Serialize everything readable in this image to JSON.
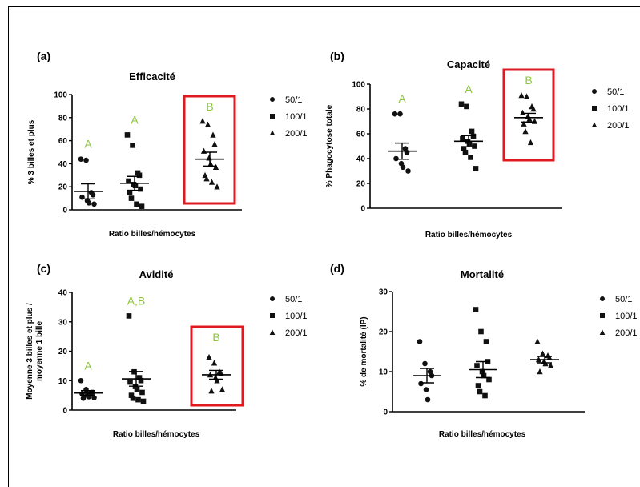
{
  "colors": {
    "group_letter": "#8dc63f",
    "highlight_box": "#e0191f",
    "marks": "#111111"
  },
  "chart_data": [
    {
      "id": "a",
      "panel_label": "(a)",
      "type": "scatter",
      "title": "Efficacité",
      "xlabel": "Ratio billes/hémocytes",
      "ylabel": "% 3 billes et plus",
      "ylim": [
        0,
        100
      ],
      "yticks": [
        0,
        20,
        40,
        60,
        80,
        100
      ],
      "categories": [
        "50/1",
        "100/1",
        "200/1"
      ],
      "legend": {
        "placement": "right",
        "entries": [
          {
            "label": "50/1",
            "marker": "circle"
          },
          {
            "label": "100/1",
            "marker": "square"
          },
          {
            "label": "200/1",
            "marker": "triangle"
          }
        ]
      },
      "series": [
        {
          "marker": "circle",
          "values": [
            44,
            43,
            15,
            13,
            11,
            8,
            6,
            5
          ],
          "mean": 16,
          "sem": 6.5,
          "letter": "A"
        },
        {
          "marker": "square",
          "values": [
            65,
            56,
            32,
            30,
            25,
            22,
            21,
            18,
            15,
            10,
            5,
            3
          ],
          "mean": 23,
          "sem": 6,
          "letter": "A"
        },
        {
          "marker": "triangle",
          "values": [
            77,
            74,
            65,
            57,
            51,
            45,
            40,
            37,
            30,
            27,
            24,
            20
          ],
          "mean": 44,
          "sem": 6,
          "letter": "B"
        }
      ],
      "highlight_category": 2
    },
    {
      "id": "b",
      "panel_label": "(b)",
      "type": "scatter",
      "title": "Capacité",
      "xlabel": "Ratio billes/hémocytes",
      "ylabel": "% Phagocytose totale",
      "ylim": [
        0,
        100
      ],
      "yticks": [
        0,
        20,
        40,
        60,
        80,
        100
      ],
      "categories": [
        "50/1",
        "100/1",
        "200/1"
      ],
      "legend": {
        "placement": "right",
        "entries": [
          {
            "label": "50/1",
            "marker": "circle"
          },
          {
            "label": "100/1",
            "marker": "square"
          },
          {
            "label": "200/1",
            "marker": "triangle"
          }
        ]
      },
      "series": [
        {
          "marker": "circle",
          "values": [
            76,
            76,
            48,
            45,
            40,
            36,
            33,
            30
          ],
          "mean": 46,
          "sem": 6.5,
          "letter": "A"
        },
        {
          "marker": "square",
          "values": [
            84,
            82,
            62,
            58,
            56,
            54,
            52,
            50,
            48,
            45,
            41,
            32
          ],
          "mean": 54,
          "sem": 4.5,
          "letter": "A"
        },
        {
          "marker": "triangle",
          "values": [
            91,
            90,
            82,
            80,
            77,
            74,
            72,
            70,
            68,
            62,
            53
          ],
          "mean": 73,
          "sem": 3.5,
          "letter": "B"
        }
      ],
      "highlight_category": 2
    },
    {
      "id": "c",
      "panel_label": "(c)",
      "type": "scatter",
      "title": "Avidité",
      "xlabel": "Ratio billes/hémocytes",
      "ylabel": "Moyenne 3 billes et plus / moyenne 1 bille",
      "ylim": [
        0,
        40
      ],
      "yticks": [
        0,
        10,
        20,
        30,
        40
      ],
      "categories": [
        "50/1",
        "100/1",
        "200/1"
      ],
      "legend": {
        "placement": "right",
        "entries": [
          {
            "label": "50/1",
            "marker": "circle"
          },
          {
            "label": "100/1",
            "marker": "square"
          },
          {
            "label": "200/1",
            "marker": "triangle"
          }
        ]
      },
      "series": [
        {
          "marker": "circle",
          "values": [
            10,
            7,
            6,
            6,
            5.5,
            5,
            4.5,
            4.2,
            4
          ],
          "mean": 5.8,
          "sem": 0.8,
          "letter": "A"
        },
        {
          "marker": "square",
          "values": [
            32,
            13,
            11,
            10,
            9.5,
            8,
            7,
            6,
            5,
            4,
            3.5,
            3
          ],
          "mean": 10.6,
          "sem": 2.5,
          "letter": "A,B"
        },
        {
          "marker": "triangle",
          "values": [
            18,
            16,
            13,
            12.5,
            12,
            11,
            10,
            7,
            6.5
          ],
          "mean": 12,
          "sem": 1.5,
          "letter": "B"
        }
      ],
      "highlight_category": 2
    },
    {
      "id": "d",
      "panel_label": "(d)",
      "type": "scatter",
      "title": "Mortalité",
      "xlabel": "Ratio billes/hémocytes",
      "ylabel": "% de mortalité (IP)",
      "ylim": [
        0,
        30
      ],
      "yticks": [
        0,
        10,
        20,
        30
      ],
      "categories": [
        "50/1",
        "100/1",
        "200/1"
      ],
      "legend": {
        "placement": "right",
        "entries": [
          {
            "label": "50/1",
            "marker": "circle"
          },
          {
            "label": "100/1",
            "marker": "square"
          },
          {
            "label": "200/1",
            "marker": "triangle"
          }
        ]
      },
      "series": [
        {
          "marker": "circle",
          "values": [
            17.5,
            12,
            10,
            9,
            7,
            5.5,
            3
          ],
          "mean": 9,
          "sem": 1.8,
          "letter": ""
        },
        {
          "marker": "square",
          "values": [
            25.5,
            20,
            17.5,
            12.5,
            11.5,
            10,
            9,
            8,
            6.5,
            5,
            4
          ],
          "mean": 10.5,
          "sem": 2,
          "letter": ""
        },
        {
          "marker": "triangle",
          "values": [
            17.5,
            14.5,
            14,
            13.5,
            13,
            12.5,
            12,
            11.5,
            10
          ],
          "mean": 13,
          "sem": 0.8,
          "letter": ""
        }
      ],
      "highlight_category": -1
    }
  ]
}
